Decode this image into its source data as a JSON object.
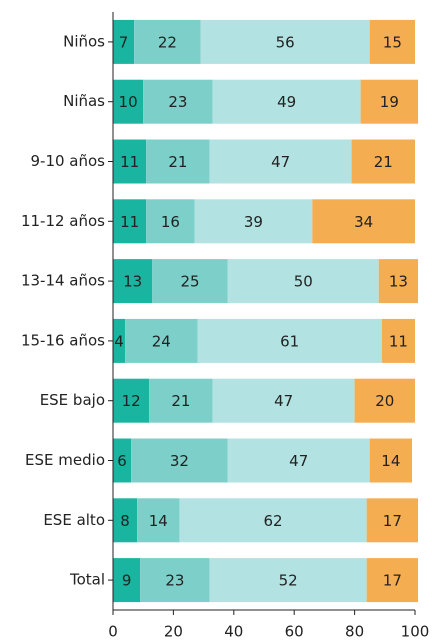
{
  "chart_data": {
    "type": "stacked_bar_horizontal",
    "categories": [
      "Niños",
      "Niñas",
      "9-10 años",
      "11-12 años",
      "13-14 años",
      "15-16 años",
      "ESE bajo",
      "ESE medio",
      "ESE alto",
      "Total"
    ],
    "series": [
      {
        "color": "#1ab5a0",
        "values": [
          7,
          10,
          11,
          11,
          13,
          4,
          12,
          6,
          8,
          9
        ]
      },
      {
        "color": "#7dcfc9",
        "values": [
          22,
          23,
          21,
          16,
          25,
          24,
          21,
          32,
          14,
          23
        ]
      },
      {
        "color": "#b2e2e2",
        "values": [
          56,
          49,
          47,
          39,
          50,
          61,
          47,
          47,
          62,
          52
        ]
      },
      {
        "color": "#f5ad52",
        "values": [
          15,
          19,
          21,
          34,
          13,
          11,
          20,
          14,
          17,
          17
        ]
      }
    ],
    "xlim": [
      0,
      100
    ],
    "xticks": [
      0,
      20,
      40,
      60,
      80,
      100
    ]
  }
}
